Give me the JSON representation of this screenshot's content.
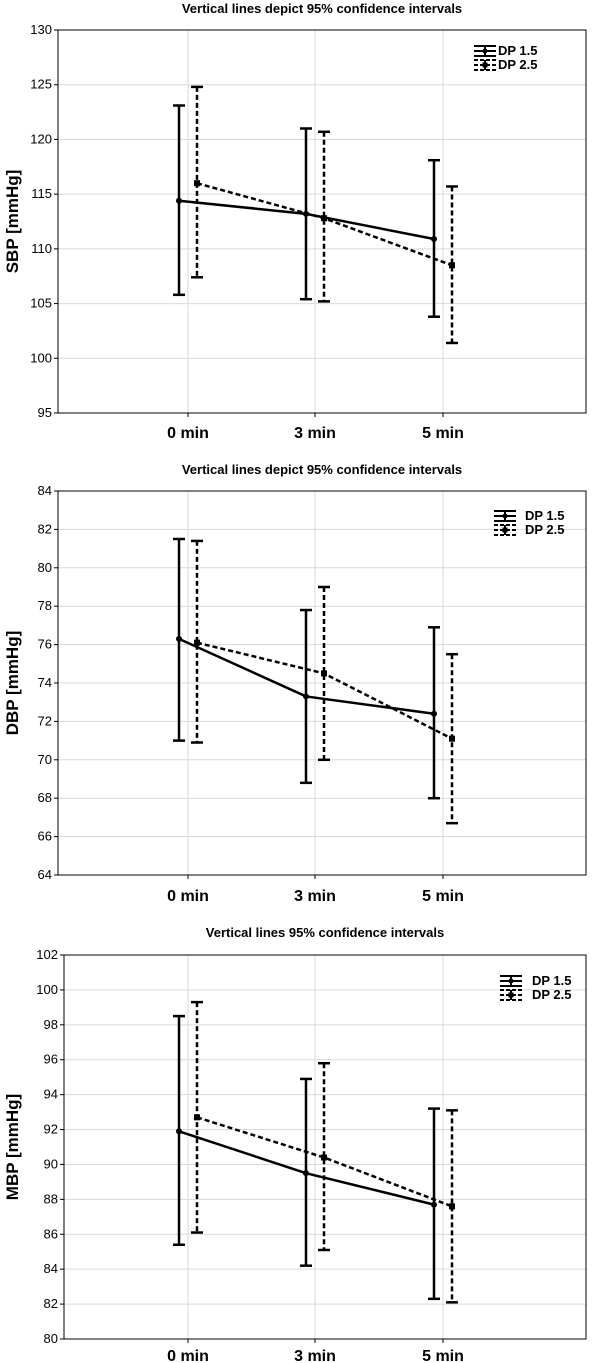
{
  "chart_data": [
    {
      "type": "line",
      "title": "Vertical lines depict 95% confidence intervals",
      "ylabel": "SBP [mmHg]",
      "xlabel": "",
      "categories": [
        "0 min",
        "3 min",
        "5 min"
      ],
      "ylim": [
        95,
        130
      ],
      "yticks": [
        95,
        100,
        105,
        110,
        115,
        120,
        125,
        130
      ],
      "grid": true,
      "legend_position": "top-right",
      "series": [
        {
          "name": "DP 1.5",
          "style": "solid",
          "values": [
            114.4,
            113.2,
            110.9
          ],
          "lower": [
            105.8,
            105.4,
            103.8
          ],
          "upper": [
            123.1,
            121.0,
            118.1
          ]
        },
        {
          "name": "DP 2.5",
          "style": "dashed",
          "values": [
            116.0,
            112.8,
            108.5
          ],
          "lower": [
            107.4,
            105.2,
            101.4
          ],
          "upper": [
            124.8,
            120.7,
            115.7
          ]
        }
      ]
    },
    {
      "type": "line",
      "title": "Vertical lines depict 95% confidence intervals",
      "ylabel": "DBP [mmHg]",
      "xlabel": "",
      "categories": [
        "0 min",
        "3 min",
        "5 min"
      ],
      "ylim": [
        64,
        84
      ],
      "yticks": [
        64,
        66,
        68,
        70,
        72,
        74,
        76,
        78,
        80,
        82,
        84
      ],
      "grid": true,
      "legend_position": "top-right",
      "series": [
        {
          "name": "DP 1.5",
          "style": "solid",
          "values": [
            76.3,
            73.3,
            72.4
          ],
          "lower": [
            71.0,
            68.8,
            68.0
          ],
          "upper": [
            81.5,
            77.8,
            76.9
          ]
        },
        {
          "name": "DP 2.5",
          "style": "dashed",
          "values": [
            76.1,
            74.5,
            71.1
          ],
          "lower": [
            70.9,
            70.0,
            66.7
          ],
          "upper": [
            81.4,
            79.0,
            75.5
          ]
        }
      ]
    },
    {
      "type": "line",
      "title": "Vertical lines 95% confidence intervals",
      "ylabel": "MBP [mmHg]",
      "xlabel": "",
      "categories": [
        "0 min",
        "3 min",
        "5 min"
      ],
      "ylim": [
        80,
        102
      ],
      "yticks": [
        80,
        82,
        84,
        86,
        88,
        90,
        92,
        94,
        96,
        98,
        100,
        102
      ],
      "grid": true,
      "legend_position": "top-right",
      "series": [
        {
          "name": "DP 1.5",
          "style": "solid",
          "values": [
            91.9,
            89.5,
            87.7
          ],
          "lower": [
            85.4,
            84.2,
            82.3
          ],
          "upper": [
            98.5,
            94.9,
            93.2
          ]
        },
        {
          "name": "DP 2.5",
          "style": "dashed",
          "values": [
            92.7,
            90.4,
            87.6
          ],
          "lower": [
            86.1,
            85.1,
            82.1
          ],
          "upper": [
            99.3,
            95.8,
            93.1
          ]
        }
      ]
    }
  ]
}
